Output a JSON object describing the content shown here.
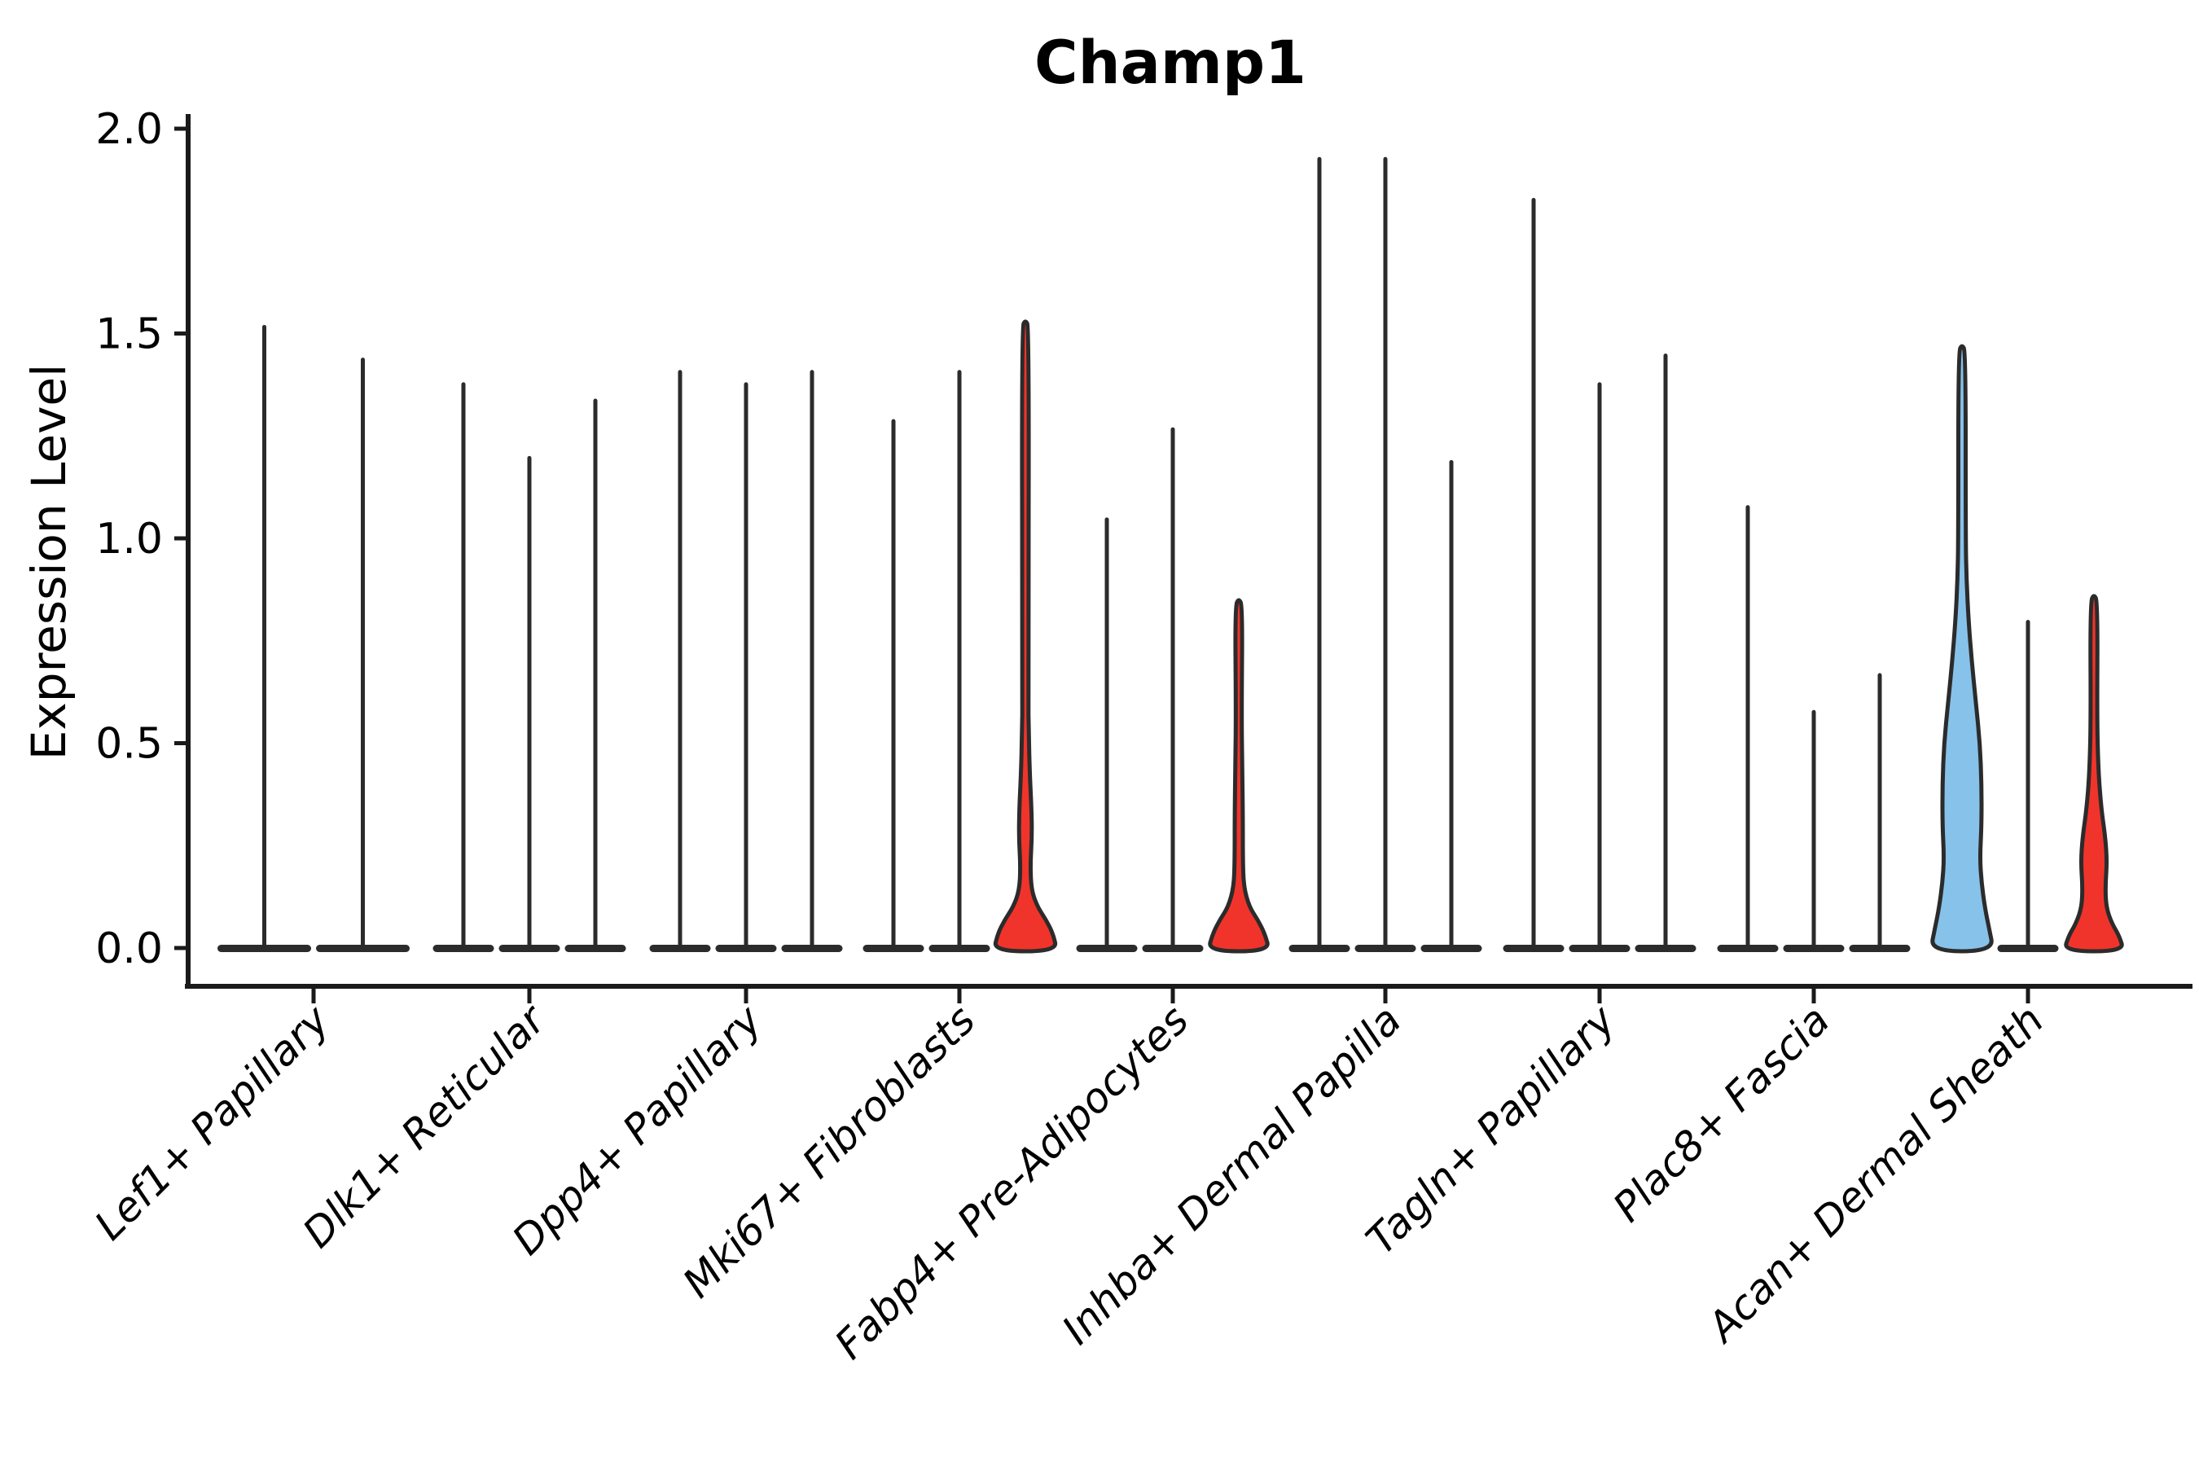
{
  "chart_data": {
    "type": "violin",
    "title": "Champ1",
    "ylabel": "Expression Level",
    "xlabel": "",
    "ylim": [
      0.0,
      2.0
    ],
    "grid": false,
    "legend_position": "none",
    "background_color": "#ffffff",
    "outline_color": "#2b2b2b",
    "axis_color": "#1a1a1a",
    "highlight_colors": {
      "red": "#f1342b",
      "blue": "#87c2ea"
    },
    "yticks": [
      {
        "value": 2.0,
        "label": "2.0"
      },
      {
        "value": 1.5,
        "label": "1.5"
      },
      {
        "value": 1.0,
        "label": "1.0"
      },
      {
        "value": 0.5,
        "label": "0.5"
      },
      {
        "value": 0.0,
        "label": "0.0"
      }
    ],
    "categories": [
      "Lef1+ Papillary",
      "Dlk1+ Reticular",
      "Dpp4+ Papillary",
      "Mki67+ Fibroblasts",
      "Fabp4+ Pre-Adipocytes",
      "Inhba+ Dermal Papilla",
      "Tagln+ Papillary",
      "Plac8+ Fascia",
      "Acan+ Dermal Sheath"
    ],
    "groups": [
      {
        "category": "Lef1+ Papillary",
        "violins": [
          {
            "max": 1.52,
            "fill": "none"
          },
          {
            "max": 1.44,
            "fill": "none"
          }
        ]
      },
      {
        "category": "Dlk1+ Reticular",
        "violins": [
          {
            "max": 1.38,
            "fill": "none"
          },
          {
            "max": 1.2,
            "fill": "none"
          },
          {
            "max": 1.34,
            "fill": "none"
          }
        ]
      },
      {
        "category": "Dpp4+ Papillary",
        "violins": [
          {
            "max": 1.41,
            "fill": "none"
          },
          {
            "max": 1.38,
            "fill": "none"
          },
          {
            "max": 1.41,
            "fill": "none"
          }
        ]
      },
      {
        "category": "Mki67+ Fibroblasts",
        "violins": [
          {
            "max": 1.29,
            "fill": "none"
          },
          {
            "max": 1.41,
            "fill": "none"
          },
          {
            "max": 1.53,
            "fill": "red",
            "profile": [
              [
                0,
                39
              ],
              [
                0.035,
                34
              ],
              [
                0.07,
                25
              ],
              [
                0.1,
                15
              ],
              [
                0.14,
                7.5
              ],
              [
                0.2,
                6
              ],
              [
                0.27,
                8
              ],
              [
                0.34,
                7.5
              ],
              [
                0.42,
                5.5
              ],
              [
                0.52,
                4.2
              ],
              [
                0.62,
                3.5
              ]
            ]
          }
        ]
      },
      {
        "category": "Fabp4+ Pre-Adipocytes",
        "violins": [
          {
            "max": 1.05,
            "fill": "none"
          },
          {
            "max": 1.27,
            "fill": "none"
          },
          {
            "max": 0.85,
            "fill": "red",
            "profile": [
              [
                0,
                38
              ],
              [
                0.035,
                32
              ],
              [
                0.07,
                23
              ],
              [
                0.1,
                13
              ],
              [
                0.15,
                6
              ],
              [
                0.22,
                5
              ],
              [
                0.32,
                5
              ],
              [
                0.45,
                4.2
              ],
              [
                0.58,
                3.5
              ]
            ]
          }
        ]
      },
      {
        "category": "Inhba+ Dermal Papilla",
        "violins": [
          {
            "max": 1.93,
            "fill": "none"
          },
          {
            "max": 1.93,
            "fill": "none"
          },
          {
            "max": 1.19,
            "fill": "none"
          }
        ]
      },
      {
        "category": "Tagln+ Papillary",
        "violins": [
          {
            "max": 1.83,
            "fill": "none"
          },
          {
            "max": 1.38,
            "fill": "none"
          },
          {
            "max": 1.45,
            "fill": "none"
          }
        ]
      },
      {
        "category": "Plac8+ Fascia",
        "violins": [
          {
            "max": 1.08,
            "fill": "none"
          },
          {
            "max": 0.58,
            "fill": "none"
          },
          {
            "max": 0.67,
            "fill": "none"
          }
        ]
      },
      {
        "category": "Acan+ Dermal Sheath",
        "violins": [
          {
            "max": 1.47,
            "fill": "blue",
            "profile": [
              [
                0,
                39
              ],
              [
                0.05,
                33
              ],
              [
                0.1,
                28
              ],
              [
                0.16,
                24
              ],
              [
                0.22,
                22
              ],
              [
                0.3,
                24
              ],
              [
                0.4,
                24
              ],
              [
                0.5,
                22
              ],
              [
                0.6,
                17
              ],
              [
                0.7,
                12
              ],
              [
                0.8,
                8
              ],
              [
                0.9,
                5.5
              ],
              [
                1.0,
                4.5
              ]
            ]
          },
          {
            "max": 0.8,
            "fill": "none"
          },
          {
            "max": 0.86,
            "fill": "red",
            "profile": [
              [
                0,
                37
              ],
              [
                0.03,
                31
              ],
              [
                0.06,
                22
              ],
              [
                0.1,
                15
              ],
              [
                0.15,
                14
              ],
              [
                0.21,
                16
              ],
              [
                0.27,
                14
              ],
              [
                0.34,
                9
              ],
              [
                0.43,
                5.5
              ],
              [
                0.55,
                3.8
              ]
            ]
          }
        ]
      }
    ]
  }
}
